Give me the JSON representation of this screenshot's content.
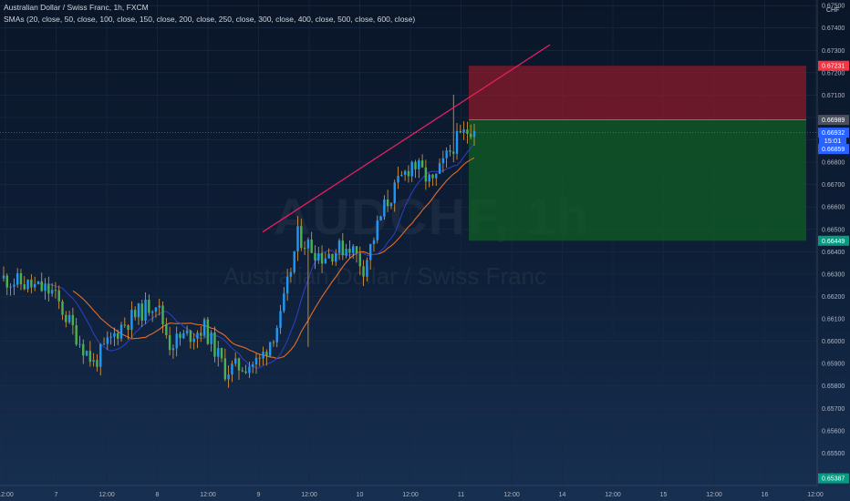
{
  "header": {
    "title": "Australian Dollar / Swiss Franc, 1h, FXCM",
    "indicator": "SMAs (20, close, 50, close, 100, close, 150, close, 200, close, 250, close, 300, close, 400, close, 500, close, 600, close)",
    "currency": "CHF"
  },
  "watermark": {
    "symbol": "AUDCHF, 1h",
    "description": "Australian Dollar / Swiss Franc"
  },
  "countdown": "15:01",
  "colors": {
    "bull": "#2196f3",
    "bear": "#4caf50",
    "wick": "#e8a03a",
    "trendline": "#e91e63",
    "stop_zone": "#8b1a2a",
    "target_zone": "#0f5a24",
    "sma_fast": "#e36c2a",
    "sma_slow": "#2b3fb8"
  },
  "chart_data": {
    "type": "candlestick",
    "symbol": "AUDCHF",
    "timeframe": "1h",
    "y_axis_ticks": [
      "0.67500",
      "0.67400",
      "0.67300",
      "0.67200",
      "0.67100",
      "0.67000",
      "0.66900",
      "0.66800",
      "0.66700",
      "0.66600",
      "0.66500",
      "0.66400",
      "0.66300",
      "0.66200",
      "0.66100",
      "0.66000",
      "0.65900",
      "0.65800",
      "0.65700",
      "0.65600",
      "0.65500",
      "0.65400"
    ],
    "ylim": [
      0.65355,
      0.67525
    ],
    "x_axis_labels": [
      "12:00",
      "7",
      "12:00",
      "8",
      "12:00",
      "9",
      "12:00",
      "10",
      "12:00",
      "11",
      "12:00",
      "14",
      "12:00",
      "15",
      "12:00",
      "16",
      "12:00"
    ],
    "price_tags": [
      {
        "label": "0.67231",
        "value": 0.67231,
        "color": "#f23645"
      },
      {
        "label": "0.66989",
        "value": 0.66989,
        "color": "#4a4f5c"
      },
      {
        "label": "0.66932",
        "value": 0.66932,
        "color": "#2962ff"
      },
      {
        "label": "0.66859",
        "value": 0.66859,
        "color": "#2962ff"
      },
      {
        "label": "0.66449",
        "value": 0.66449,
        "color": "#089981"
      },
      {
        "label": "0.65387",
        "value": 0.65387,
        "color": "#089981"
      }
    ],
    "last_price": 0.66932,
    "position": {
      "type": "short",
      "entry": 0.66989,
      "stop": 0.67231,
      "target": 0.66449
    },
    "trendline": {
      "from_bar": 0,
      "to_bar": 0
    }
  }
}
